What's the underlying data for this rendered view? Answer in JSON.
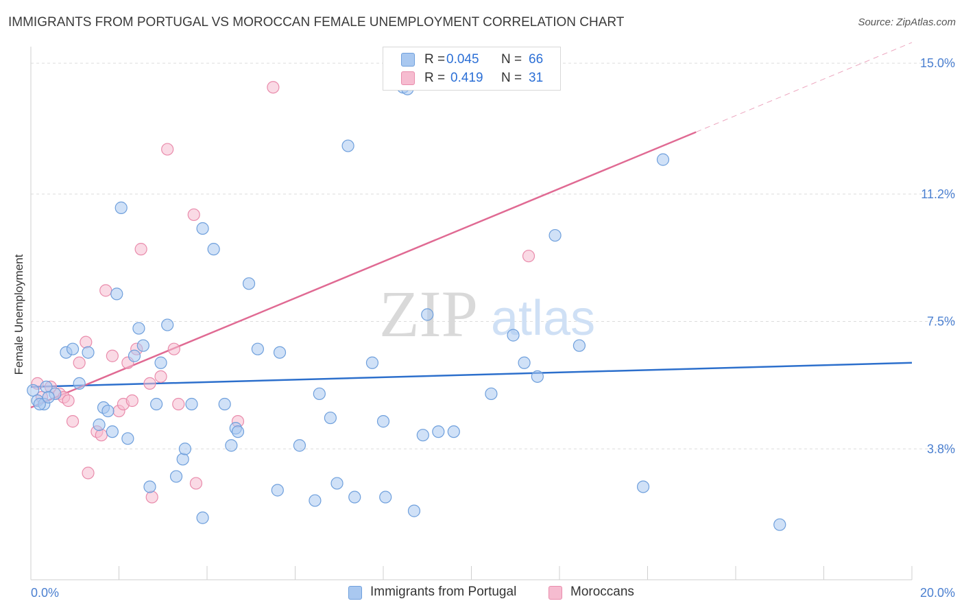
{
  "header": {
    "title": "IMMIGRANTS FROM PORTUGAL VS MOROCCAN FEMALE UNEMPLOYMENT CORRELATION CHART",
    "source": "Source: ZipAtlas.com"
  },
  "watermark": {
    "zip": "ZIP",
    "atlas": "atlas"
  },
  "legend": {
    "r_label": "R =",
    "n_label": "N =",
    "series": [
      {
        "name": "Immigrants from Portugal",
        "r": "0.045",
        "n": "66"
      },
      {
        "name": "Moroccans",
        "r": "0.419",
        "n": "31"
      }
    ]
  },
  "colors": {
    "blue_fill": "#a9c8f0",
    "blue_stroke": "#6e9fdc",
    "blue_line": "#2c6fcc",
    "pink_fill": "#f6bcd0",
    "pink_stroke": "#e98bab",
    "pink_line": "#e06a93",
    "grid": "#dcdcdc",
    "axis_text": "#4a7fd0"
  },
  "chart_data": {
    "type": "scatter",
    "title": "IMMIGRANTS FROM PORTUGAL VS MOROCCAN FEMALE UNEMPLOYMENT CORRELATION CHART",
    "xlabel": "",
    "ylabel": "Female Unemployment",
    "xlim": [
      0,
      20
    ],
    "ylim": [
      0,
      15.4
    ],
    "x_tick_labels": [
      "0.0%",
      "20.0%"
    ],
    "y_ticks": [
      3.8,
      7.5,
      11.2,
      15.0
    ],
    "y_tick_labels": [
      "3.8%",
      "7.5%",
      "11.2%",
      "15.0%"
    ],
    "grid": true,
    "series": [
      {
        "name": "Immigrants from Portugal",
        "r": 0.045,
        "n": 66,
        "trend": {
          "x": [
            0,
            20
          ],
          "y": [
            5.6,
            6.3
          ]
        },
        "points": [
          [
            0.05,
            5.5
          ],
          [
            0.15,
            5.2
          ],
          [
            0.35,
            5.6
          ],
          [
            0.3,
            5.1
          ],
          [
            0.55,
            5.4
          ],
          [
            0.8,
            6.6
          ],
          [
            0.95,
            6.7
          ],
          [
            1.1,
            5.7
          ],
          [
            1.3,
            6.6
          ],
          [
            1.55,
            4.5
          ],
          [
            1.65,
            5.0
          ],
          [
            1.75,
            4.9
          ],
          [
            1.85,
            4.3
          ],
          [
            1.95,
            8.3
          ],
          [
            2.05,
            10.8
          ],
          [
            2.2,
            4.1
          ],
          [
            2.35,
            6.5
          ],
          [
            2.45,
            7.3
          ],
          [
            2.55,
            6.8
          ],
          [
            2.7,
            2.7
          ],
          [
            2.85,
            5.1
          ],
          [
            2.95,
            6.3
          ],
          [
            3.1,
            7.4
          ],
          [
            3.3,
            3.0
          ],
          [
            3.45,
            3.5
          ],
          [
            3.5,
            3.8
          ],
          [
            3.65,
            5.1
          ],
          [
            3.9,
            1.8
          ],
          [
            3.9,
            10.2
          ],
          [
            4.15,
            9.6
          ],
          [
            4.4,
            5.1
          ],
          [
            4.55,
            3.9
          ],
          [
            4.65,
            4.4
          ],
          [
            4.7,
            4.3
          ],
          [
            4.95,
            8.6
          ],
          [
            5.15,
            6.7
          ],
          [
            5.6,
            2.6
          ],
          [
            5.65,
            6.6
          ],
          [
            6.1,
            3.9
          ],
          [
            6.45,
            2.3
          ],
          [
            6.55,
            5.4
          ],
          [
            6.8,
            4.7
          ],
          [
            6.95,
            2.8
          ],
          [
            7.2,
            12.6
          ],
          [
            7.35,
            2.4
          ],
          [
            7.75,
            6.3
          ],
          [
            8.0,
            4.6
          ],
          [
            8.05,
            2.4
          ],
          [
            8.45,
            14.3
          ],
          [
            8.55,
            14.25
          ],
          [
            8.7,
            2.0
          ],
          [
            8.9,
            4.2
          ],
          [
            9.0,
            7.7
          ],
          [
            9.25,
            4.3
          ],
          [
            9.6,
            4.3
          ],
          [
            10.45,
            5.4
          ],
          [
            10.95,
            7.1
          ],
          [
            11.2,
            6.3
          ],
          [
            11.5,
            5.9
          ],
          [
            11.9,
            10.0
          ],
          [
            12.45,
            6.8
          ],
          [
            13.9,
            2.7
          ],
          [
            14.35,
            12.2
          ],
          [
            17.0,
            1.6
          ],
          [
            0.2,
            5.1
          ],
          [
            0.4,
            5.3
          ]
        ]
      },
      {
        "name": "Moroccans",
        "r": 0.419,
        "n": 31,
        "trend": {
          "x": [
            0,
            15.1
          ],
          "y": [
            5.0,
            13.0
          ],
          "dashed_extension": {
            "x": [
              15.1,
              20
            ],
            "y": [
              13.0,
              15.6
            ]
          }
        },
        "points": [
          [
            0.15,
            5.7
          ],
          [
            0.25,
            5.3
          ],
          [
            0.45,
            5.6
          ],
          [
            0.65,
            5.4
          ],
          [
            0.75,
            5.3
          ],
          [
            0.85,
            5.2
          ],
          [
            0.95,
            4.6
          ],
          [
            1.1,
            6.3
          ],
          [
            1.25,
            6.9
          ],
          [
            1.3,
            3.1
          ],
          [
            1.5,
            4.3
          ],
          [
            1.6,
            4.2
          ],
          [
            1.7,
            8.4
          ],
          [
            1.85,
            6.5
          ],
          [
            2.0,
            4.9
          ],
          [
            2.1,
            5.1
          ],
          [
            2.2,
            6.3
          ],
          [
            2.4,
            6.7
          ],
          [
            2.5,
            9.6
          ],
          [
            2.7,
            5.7
          ],
          [
            2.75,
            2.4
          ],
          [
            2.95,
            5.9
          ],
          [
            3.1,
            12.5
          ],
          [
            3.25,
            6.7
          ],
          [
            3.35,
            5.1
          ],
          [
            3.7,
            10.6
          ],
          [
            3.75,
            2.8
          ],
          [
            4.7,
            4.6
          ],
          [
            5.5,
            14.3
          ],
          [
            11.3,
            9.4
          ],
          [
            2.3,
            5.2
          ]
        ]
      }
    ]
  }
}
